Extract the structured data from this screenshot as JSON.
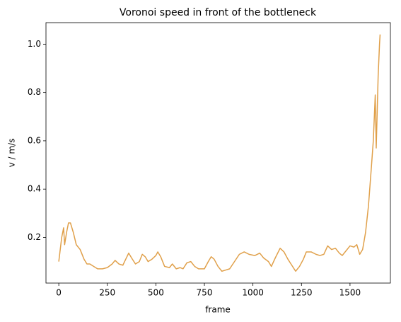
{
  "chart_data": {
    "type": "line",
    "title": "Voronoi speed in front of the bottleneck",
    "x_label": "frame",
    "y_label": "v / m/s",
    "x": [
      0,
      15,
      25,
      30,
      40,
      50,
      60,
      75,
      90,
      110,
      130,
      145,
      160,
      180,
      200,
      225,
      250,
      275,
      290,
      310,
      330,
      345,
      360,
      375,
      395,
      415,
      430,
      445,
      460,
      480,
      500,
      510,
      525,
      545,
      570,
      585,
      605,
      625,
      640,
      660,
      680,
      700,
      720,
      750,
      770,
      785,
      800,
      820,
      840,
      860,
      880,
      905,
      930,
      955,
      980,
      1010,
      1035,
      1055,
      1080,
      1095,
      1115,
      1140,
      1160,
      1180,
      1200,
      1220,
      1240,
      1260,
      1275,
      1300,
      1325,
      1345,
      1365,
      1385,
      1405,
      1425,
      1445,
      1460,
      1480,
      1500,
      1520,
      1535,
      1550,
      1565,
      1580,
      1595,
      1610,
      1620,
      1630,
      1635,
      1645,
      1652,
      1655
    ],
    "series": [
      {
        "color": "#e0a04a",
        "values": [
          0.1,
          0.2,
          0.24,
          0.17,
          0.22,
          0.26,
          0.26,
          0.22,
          0.17,
          0.15,
          0.11,
          0.09,
          0.09,
          0.08,
          0.07,
          0.07,
          0.075,
          0.09,
          0.105,
          0.09,
          0.085,
          0.11,
          0.135,
          0.115,
          0.09,
          0.1,
          0.13,
          0.12,
          0.1,
          0.11,
          0.125,
          0.14,
          0.12,
          0.08,
          0.075,
          0.09,
          0.07,
          0.075,
          0.07,
          0.095,
          0.1,
          0.08,
          0.07,
          0.07,
          0.1,
          0.12,
          0.11,
          0.08,
          0.06,
          0.065,
          0.07,
          0.1,
          0.13,
          0.14,
          0.13,
          0.125,
          0.135,
          0.115,
          0.1,
          0.08,
          0.115,
          0.155,
          0.14,
          0.11,
          0.085,
          0.06,
          0.08,
          0.11,
          0.14,
          0.14,
          0.13,
          0.125,
          0.13,
          0.165,
          0.15,
          0.155,
          0.135,
          0.125,
          0.145,
          0.165,
          0.16,
          0.17,
          0.13,
          0.15,
          0.22,
          0.33,
          0.49,
          0.6,
          0.79,
          0.57,
          0.87,
          1.0,
          1.04
        ]
      }
    ],
    "xlim": [
      -66,
      1708
    ],
    "ylim": [
      0.011,
      1.089
    ],
    "xticks": [
      0,
      250,
      500,
      750,
      1000,
      1250,
      1500
    ],
    "yticks": [
      0.2,
      0.4,
      0.6,
      0.8,
      {
        "value": 1,
        "label": "1.0"
      }
    ]
  }
}
